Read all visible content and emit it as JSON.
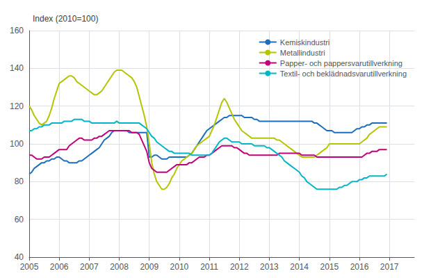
{
  "chart_data": {
    "type": "line",
    "title": "Index (2010=100)",
    "x": [
      2005,
      2005.0833,
      2005.1667,
      2005.25,
      2005.3333,
      2005.4167,
      2005.5,
      2005.5833,
      2005.6667,
      2005.75,
      2005.8333,
      2005.9167,
      2006,
      2006.0833,
      2006.1667,
      2006.25,
      2006.3333,
      2006.4167,
      2006.5,
      2006.5833,
      2006.6667,
      2006.75,
      2006.8333,
      2006.9167,
      2007,
      2007.0833,
      2007.1667,
      2007.25,
      2007.3333,
      2007.4167,
      2007.5,
      2007.5833,
      2007.6667,
      2007.75,
      2007.8333,
      2007.9167,
      2008,
      2008.0833,
      2008.1667,
      2008.25,
      2008.3333,
      2008.4167,
      2008.5,
      2008.5833,
      2008.6667,
      2008.75,
      2008.8333,
      2008.9167,
      2009,
      2009.0833,
      2009.1667,
      2009.25,
      2009.3333,
      2009.4167,
      2009.5,
      2009.5833,
      2009.6667,
      2009.75,
      2009.8333,
      2009.9167,
      2010,
      2010.0833,
      2010.1667,
      2010.25,
      2010.3333,
      2010.4167,
      2010.5,
      2010.5833,
      2010.6667,
      2010.75,
      2010.8333,
      2010.9167,
      2011,
      2011.0833,
      2011.1667,
      2011.25,
      2011.3333,
      2011.4167,
      2011.5,
      2011.5833,
      2011.6667,
      2011.75,
      2011.8333,
      2011.9167,
      2012,
      2012.0833,
      2012.1667,
      2012.25,
      2012.3333,
      2012.4167,
      2012.5,
      2012.5833,
      2012.6667,
      2012.75,
      2012.8333,
      2012.9167,
      2013,
      2013.0833,
      2013.1667,
      2013.25,
      2013.3333,
      2013.4167,
      2013.5,
      2013.5833,
      2013.6667,
      2013.75,
      2013.8333,
      2013.9167,
      2014,
      2014.0833,
      2014.1667,
      2014.25,
      2014.3333,
      2014.4167,
      2014.5,
      2014.5833,
      2014.6667,
      2014.75,
      2014.8333,
      2014.9167,
      2015,
      2015.0833,
      2015.1667,
      2015.25,
      2015.3333,
      2015.4167,
      2015.5,
      2015.5833,
      2015.6667,
      2015.75,
      2015.8333,
      2015.9167,
      2016,
      2016.0833,
      2016.1667,
      2016.25,
      2016.3333,
      2016.4167,
      2016.5,
      2016.5833,
      2016.6667,
      2016.75,
      2016.8333,
      2016.9167
    ],
    "xlim": [
      2005.0,
      2017.83
    ],
    "xticks": [
      2005,
      2006,
      2007,
      2008,
      2009,
      2010,
      2011,
      2012,
      2013,
      2014,
      2015,
      2016,
      2017
    ],
    "ylim": [
      40,
      160
    ],
    "yticks": [
      40,
      60,
      80,
      100,
      120,
      140,
      160
    ],
    "grid": true,
    "legend": "upper right",
    "series": [
      {
        "name": "Kemiskindustri",
        "color": "#1a6ebd",
        "values": [
          84,
          85,
          87,
          88,
          89,
          90,
          90,
          91,
          91,
          92,
          92,
          93,
          93,
          92,
          91,
          91,
          90,
          90,
          90,
          90,
          91,
          91,
          92,
          93,
          94,
          95,
          96,
          97,
          98,
          100,
          102,
          103,
          104,
          106,
          107,
          107,
          107,
          107,
          107,
          107,
          106,
          106,
          106,
          106,
          106,
          106,
          106,
          106,
          93,
          93,
          94,
          94,
          93,
          92,
          92,
          92,
          93,
          93,
          93,
          93,
          93,
          93,
          93,
          93,
          94,
          95,
          97,
          99,
          101,
          103,
          105,
          107,
          108,
          109,
          110,
          111,
          112,
          113,
          114,
          114,
          115,
          115,
          115,
          115,
          115,
          115,
          114,
          114,
          114,
          114,
          113,
          113,
          112,
          112,
          112,
          112,
          112,
          112,
          112,
          112,
          112,
          112,
          112,
          112,
          112,
          112,
          112,
          112,
          112,
          112,
          112,
          112,
          112,
          112,
          111,
          111,
          110,
          109,
          108,
          107,
          107,
          107,
          106,
          106,
          106,
          106,
          106,
          106,
          106,
          106,
          107,
          108,
          108,
          109,
          109,
          110,
          110,
          111,
          111,
          111,
          111,
          111,
          111,
          111
        ]
      },
      {
        "name": "Metallindustri",
        "color": "#b5c400",
        "values": [
          120,
          118,
          115,
          113,
          111,
          110,
          111,
          112,
          115,
          119,
          124,
          128,
          132,
          133,
          134,
          135,
          136,
          136,
          135,
          133,
          132,
          131,
          130,
          129,
          128,
          127,
          126,
          126,
          127,
          128,
          130,
          132,
          134,
          136,
          138,
          139,
          139,
          139,
          138,
          137,
          136,
          135,
          133,
          130,
          125,
          120,
          115,
          109,
          100,
          90,
          84,
          80,
          78,
          76,
          76,
          77,
          79,
          82,
          84,
          87,
          89,
          91,
          92,
          93,
          94,
          95,
          97,
          99,
          100,
          101,
          102,
          103,
          104,
          107,
          110,
          114,
          118,
          122,
          124,
          122,
          119,
          116,
          113,
          111,
          109,
          107,
          106,
          105,
          104,
          103,
          103,
          103,
          103,
          103,
          103,
          103,
          103,
          103,
          103,
          102,
          102,
          101,
          100,
          99,
          98,
          97,
          96,
          95,
          94,
          93,
          93,
          93,
          93,
          93,
          93,
          94,
          95,
          96,
          97,
          98,
          100,
          100,
          100,
          100,
          100,
          100,
          100,
          100,
          100,
          100,
          100,
          100,
          100,
          101,
          102,
          103,
          105,
          106,
          107,
          108,
          109,
          109,
          109,
          109
        ]
      },
      {
        "name": "Papper- och pappersvarutillverkning",
        "color": "#c0007a",
        "values": [
          94,
          94,
          93,
          92,
          92,
          92,
          93,
          93,
          93,
          94,
          95,
          96,
          97,
          97,
          97,
          97,
          99,
          100,
          101,
          102,
          103,
          103,
          102,
          102,
          102,
          102,
          103,
          103,
          104,
          104,
          105,
          106,
          107,
          107,
          107,
          107,
          107,
          107,
          107,
          107,
          107,
          106,
          106,
          106,
          105,
          102,
          99,
          96,
          90,
          87,
          86,
          85,
          85,
          85,
          85,
          85,
          86,
          87,
          88,
          89,
          89,
          89,
          89,
          89,
          90,
          90,
          91,
          92,
          93,
          93,
          93,
          94,
          94,
          95,
          96,
          97,
          98,
          99,
          99,
          99,
          99,
          99,
          98,
          98,
          97,
          96,
          95,
          95,
          94,
          94,
          94,
          94,
          94,
          94,
          94,
          94,
          94,
          94,
          94,
          94,
          95,
          95,
          95,
          95,
          95,
          95,
          95,
          95,
          95,
          94,
          94,
          94,
          94,
          94,
          94,
          93,
          93,
          93,
          93,
          93,
          93,
          93,
          93,
          93,
          93,
          93,
          93,
          93,
          93,
          93,
          93,
          93,
          93,
          93,
          94,
          95,
          95,
          96,
          96,
          96,
          97,
          97,
          97,
          97
        ]
      },
      {
        "name": "Textil- och beklädnadsvarutillverkning",
        "color": "#00b5c8",
        "values": [
          107,
          107,
          108,
          108,
          109,
          109,
          110,
          110,
          110,
          111,
          111,
          111,
          111,
          111,
          112,
          112,
          112,
          112,
          113,
          113,
          113,
          113,
          112,
          112,
          112,
          111,
          111,
          111,
          111,
          111,
          111,
          111,
          111,
          111,
          111,
          112,
          111,
          111,
          111,
          111,
          111,
          111,
          111,
          111,
          111,
          110,
          109,
          108,
          106,
          104,
          103,
          101,
          100,
          99,
          98,
          97,
          96,
          96,
          95,
          95,
          95,
          95,
          95,
          95,
          95,
          94,
          94,
          94,
          94,
          94,
          94,
          94,
          94,
          95,
          97,
          99,
          101,
          102,
          103,
          103,
          102,
          101,
          101,
          101,
          101,
          100,
          100,
          100,
          100,
          100,
          99,
          99,
          99,
          99,
          99,
          98,
          98,
          97,
          96,
          95,
          94,
          93,
          91,
          90,
          89,
          88,
          87,
          86,
          85,
          83,
          82,
          80,
          79,
          78,
          77,
          76,
          76,
          76,
          76,
          76,
          76,
          76,
          76,
          76,
          77,
          77,
          78,
          78,
          79,
          80,
          80,
          80,
          81,
          81,
          82,
          82,
          83,
          83,
          83,
          83,
          83,
          83,
          83,
          84
        ]
      }
    ]
  }
}
